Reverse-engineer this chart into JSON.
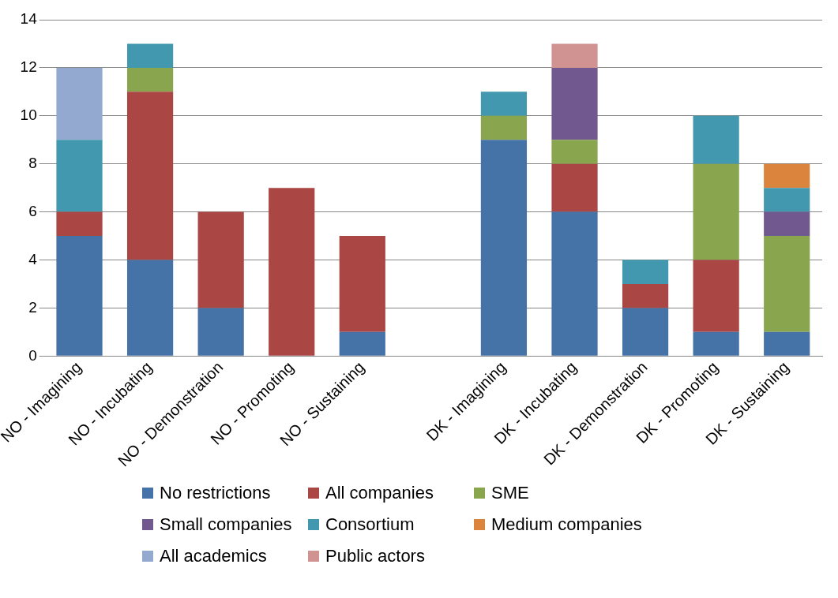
{
  "chart_data": {
    "type": "bar",
    "stacked": true,
    "categories": [
      "NO - Imagining",
      "NO - Incubating",
      "NO - Demonstration",
      "NO - Promoting",
      "NO - Sustaining",
      null,
      "DK - Imagining",
      "DK - Incubating",
      "DK - Demonstration",
      "DK - Promoting",
      "DK - Sustaining"
    ],
    "series": [
      {
        "name": "No restrictions",
        "color": "#4572a7",
        "values": [
          5,
          4,
          2,
          0,
          1,
          null,
          9,
          6,
          2,
          1,
          1
        ]
      },
      {
        "name": "All companies",
        "color": "#aa4643",
        "values": [
          1,
          7,
          4,
          7,
          4,
          null,
          0,
          2,
          1,
          3,
          0
        ]
      },
      {
        "name": "SME",
        "color": "#89a54e",
        "values": [
          0,
          1,
          0,
          0,
          0,
          null,
          1,
          1,
          0,
          4,
          4
        ]
      },
      {
        "name": "Small companies",
        "color": "#71588f",
        "values": [
          0,
          0,
          0,
          0,
          0,
          null,
          0,
          3,
          0,
          0,
          1
        ]
      },
      {
        "name": "Consortium",
        "color": "#4198af",
        "values": [
          3,
          1,
          0,
          0,
          0,
          null,
          1,
          0,
          1,
          2,
          1
        ]
      },
      {
        "name": "Medium companies",
        "color": "#db843d",
        "values": [
          0,
          0,
          0,
          0,
          0,
          null,
          0,
          0,
          0,
          0,
          1
        ]
      },
      {
        "name": "All academics",
        "color": "#93a9cf",
        "values": [
          3,
          0,
          0,
          0,
          0,
          null,
          0,
          0,
          0,
          0,
          0
        ]
      },
      {
        "name": "Public actors",
        "color": "#d19392",
        "values": [
          0,
          0,
          0,
          0,
          0,
          null,
          0,
          1,
          0,
          0,
          0
        ]
      }
    ],
    "ylim": [
      0,
      14
    ],
    "yticks": [
      0,
      2,
      4,
      6,
      8,
      10,
      12,
      14
    ],
    "grid": "y",
    "legend": "bottom"
  }
}
